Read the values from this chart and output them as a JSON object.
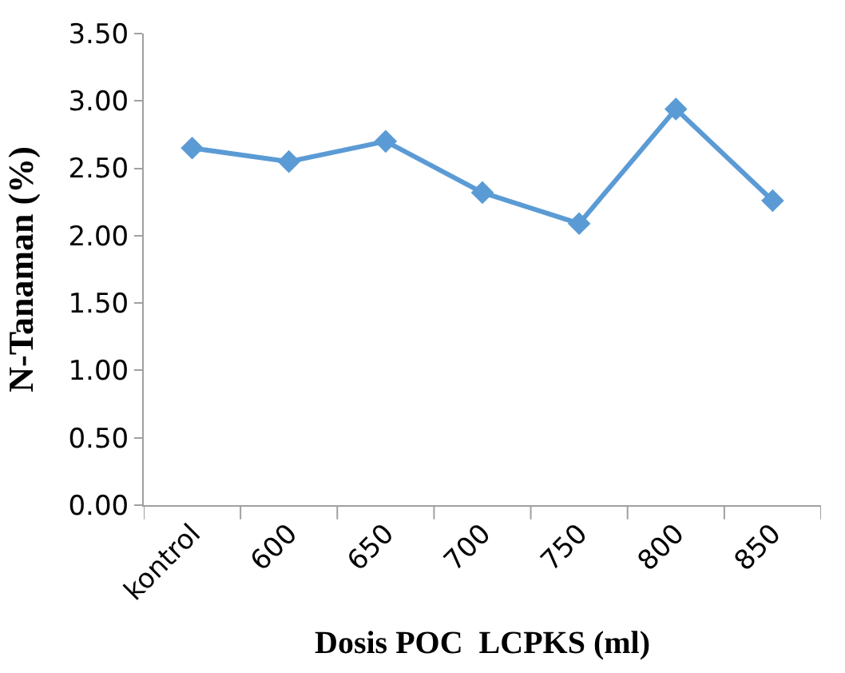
{
  "chart_data": {
    "type": "line",
    "xlabel": "Dosis POC  LCPKS (ml)",
    "ylabel": "N-Tanaman (%)",
    "categories": [
      "kontrol",
      "600",
      "650",
      "700",
      "750",
      "800",
      "850"
    ],
    "series": [
      {
        "color": "#5b9bd5",
        "values": [
          2.65,
          2.55,
          2.7,
          2.32,
          2.09,
          2.94,
          2.26
        ]
      }
    ],
    "ylim": [
      0,
      3.5
    ],
    "yticks": [
      {
        "value": 0,
        "label": "0.00"
      },
      {
        "value": 0.5,
        "label": "0.50"
      },
      {
        "value": 1,
        "label": "1.00"
      },
      {
        "value": 1.5,
        "label": "1.50"
      },
      {
        "value": 2,
        "label": "2.00"
      },
      {
        "value": 2.5,
        "label": "2.50"
      },
      {
        "value": 3,
        "label": "3.00"
      },
      {
        "value": 3.5,
        "label": "3.50"
      }
    ],
    "marker": "diamond",
    "line_style": "solid"
  }
}
